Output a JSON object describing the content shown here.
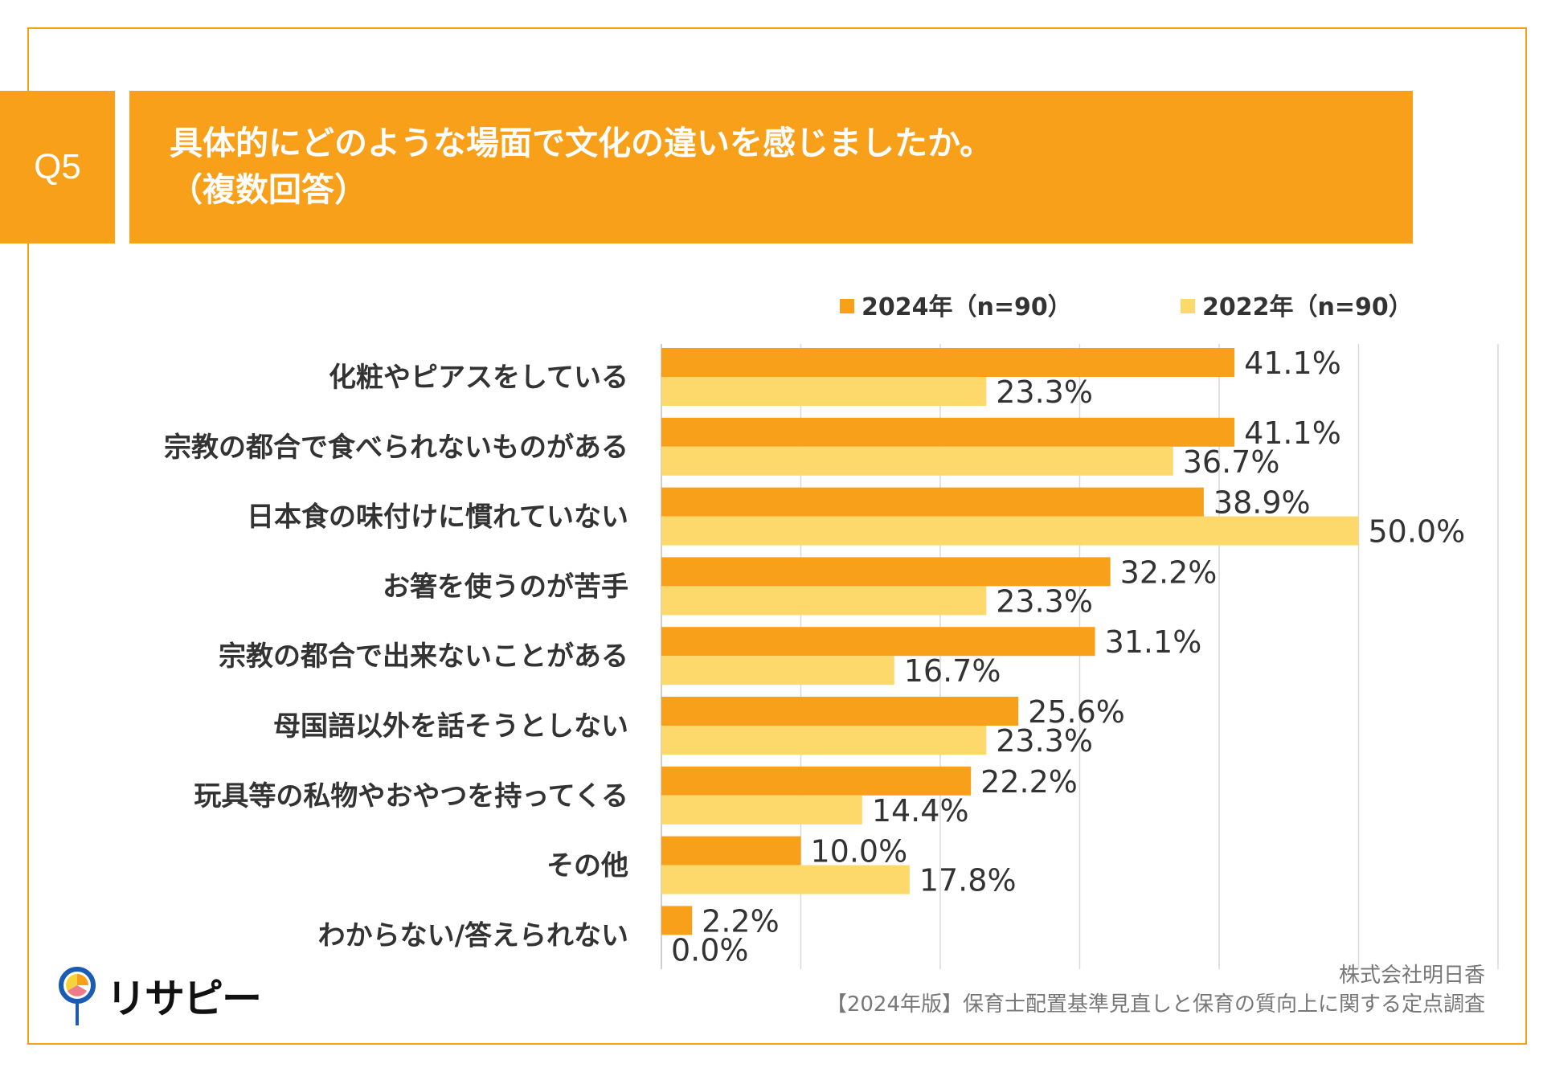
{
  "header": {
    "q_label": "Q5",
    "title_line1": "具体的にどのような場面で文化の違いを感じましたか。",
    "title_line2": "（複数回答）"
  },
  "colors": {
    "accent": "#f9a01b",
    "series_2024": "#f9a01b",
    "series_2022": "#fdd96b",
    "grid": "#d9d9d9"
  },
  "chart_data": {
    "type": "bar",
    "orientation": "horizontal",
    "categories": [
      "化粧やピアスをしている",
      "宗教の都合で食べられないものがある",
      "日本食の味付けに慣れていない",
      "お箸を使うのが苦手",
      "宗教の都合で出来ないことがある",
      "母国語以外を話そうとしない",
      "玩具等の私物やおやつを持ってくる",
      "その他",
      "わからない/答えられない"
    ],
    "series": [
      {
        "name": "2024年（n=90）",
        "values": [
          41.1,
          41.1,
          38.9,
          32.2,
          31.1,
          25.6,
          22.2,
          10.0,
          2.2
        ]
      },
      {
        "name": "2022年（n=90）",
        "values": [
          23.3,
          36.7,
          50.0,
          23.3,
          16.7,
          23.3,
          14.4,
          17.8,
          0.0
        ]
      }
    ],
    "xlim": [
      0,
      60
    ],
    "grid": true,
    "legend": "top-right",
    "value_format": "percent-1dp"
  },
  "footer": {
    "company": "株式会社明日香",
    "survey": "【2024年版】保育士配置基準見直しと保育の質向上に関する定点調査"
  },
  "logo": {
    "text": "リサピー"
  }
}
